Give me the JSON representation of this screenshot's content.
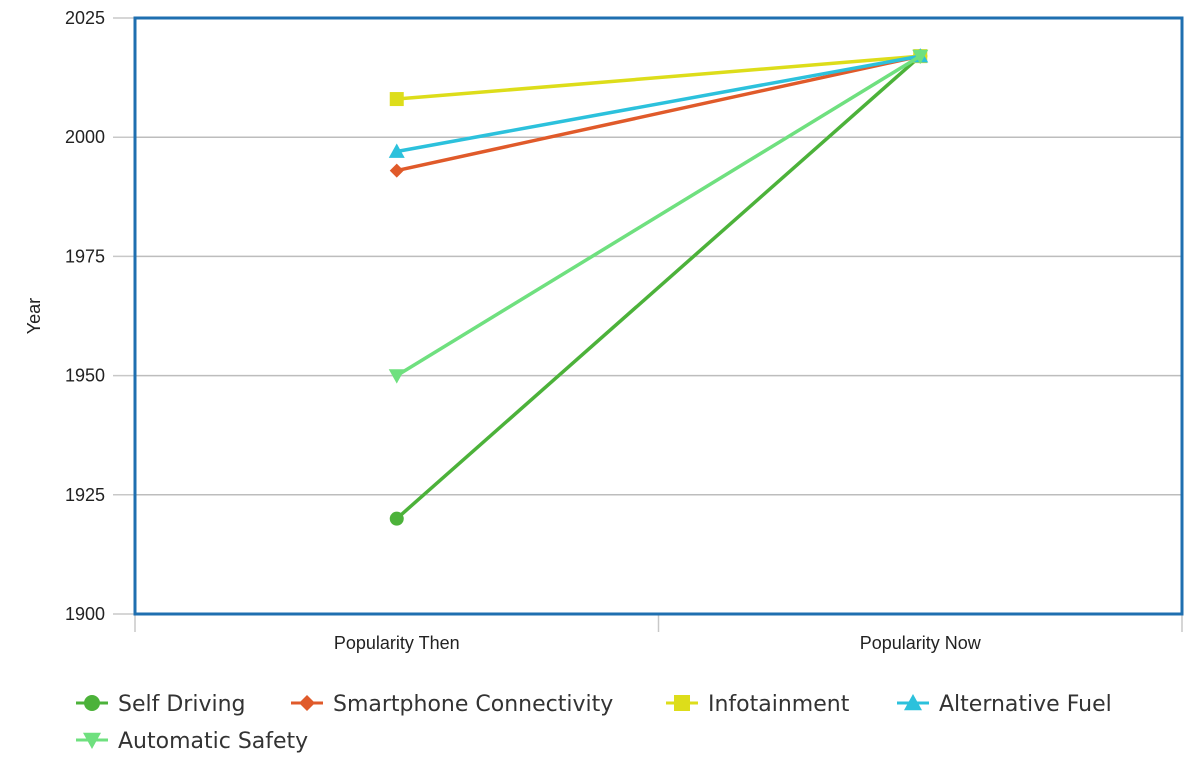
{
  "chart_data": {
    "type": "line",
    "categories": [
      "Popularity Then",
      "Popularity Now"
    ],
    "ylabel": "Year",
    "xlabel": "",
    "title": "",
    "ylim": [
      1900,
      2025
    ],
    "yticks": [
      1900,
      1925,
      1950,
      1975,
      2000,
      2025
    ],
    "grid": true,
    "legend_position": "bottom",
    "series": [
      {
        "name": "Self Driving",
        "values": [
          1920,
          2017
        ],
        "color": "#4cb23a",
        "marker": "circle"
      },
      {
        "name": "Smartphone Connectivity",
        "values": [
          1993,
          2017
        ],
        "color": "#e05a2a",
        "marker": "diamond"
      },
      {
        "name": "Infotainment",
        "values": [
          2008,
          2017
        ],
        "color": "#dddd1a",
        "marker": "square"
      },
      {
        "name": "Alternative Fuel",
        "values": [
          1997,
          2017
        ],
        "color": "#2cc1dc",
        "marker": "triangle-up"
      },
      {
        "name": "Automatic Safety",
        "values": [
          1950,
          2017
        ],
        "color": "#6fe07f",
        "marker": "triangle-down"
      }
    ]
  },
  "colors": {
    "frame": "#1f6fb0",
    "grid": "#bdbdbd",
    "axis": "#c8c8c8"
  }
}
